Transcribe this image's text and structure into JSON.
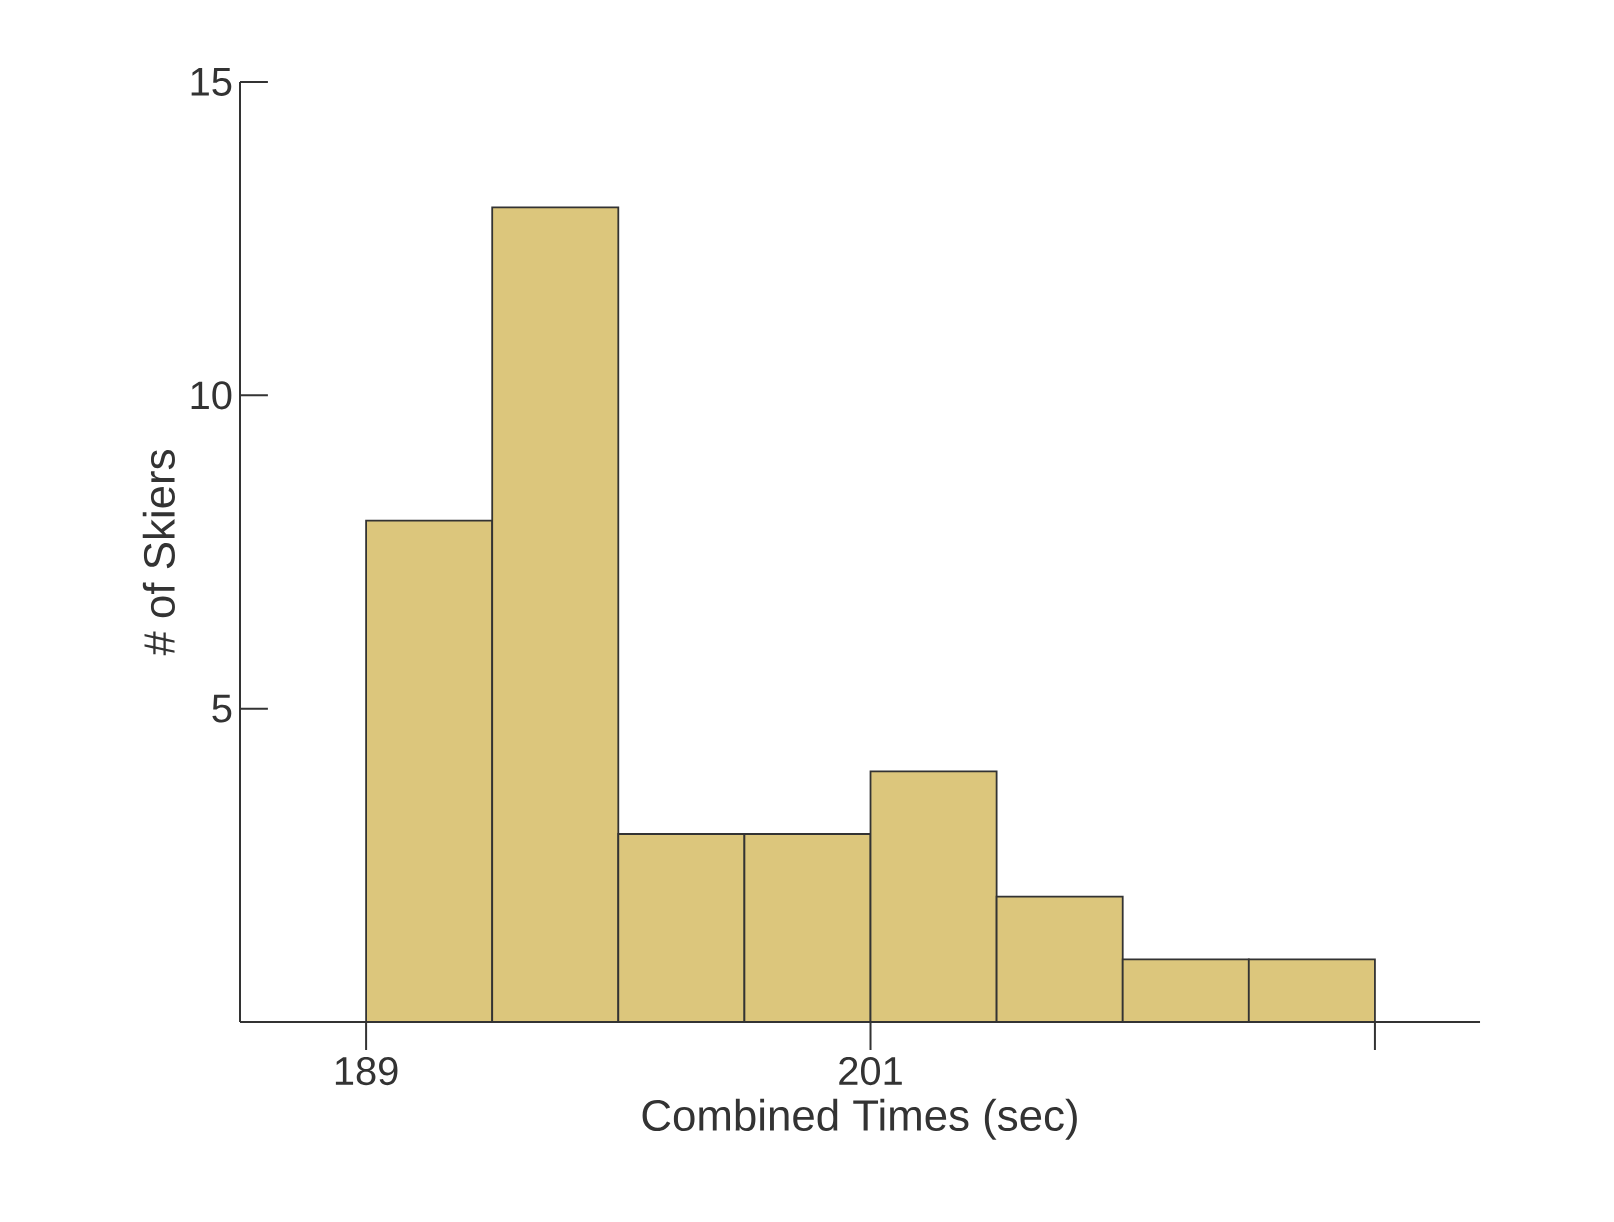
{
  "chart_data": {
    "type": "histogram",
    "xlabel": "Combined Times (sec)",
    "ylabel": "# of Skiers",
    "bins": [
      189,
      192,
      195,
      198,
      201,
      204,
      207,
      210,
      213
    ],
    "values": [
      8,
      13,
      3,
      3,
      4,
      2,
      1,
      1
    ],
    "color": "#dcc67c",
    "xlim": [
      186,
      215.5
    ],
    "ylim": [
      0,
      15
    ],
    "xticks": [
      189,
      201,
      {
        "value": 213,
        "label": null
      }
    ],
    "yticks": [
      {
        "value": 0,
        "label": null
      },
      5,
      10,
      15
    ],
    "grid": false
  }
}
